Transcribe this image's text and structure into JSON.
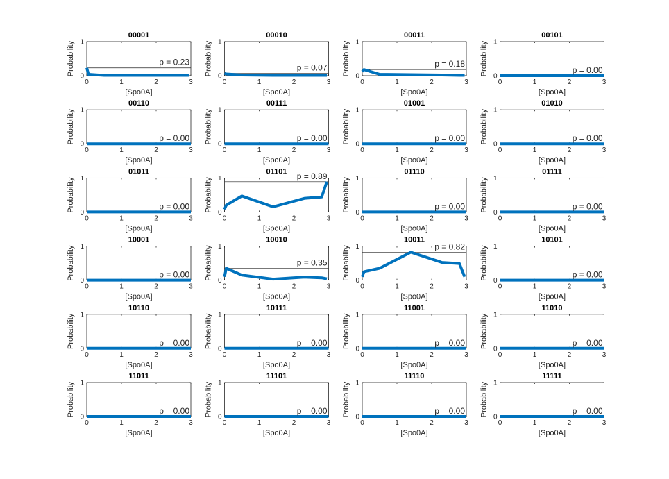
{
  "colors": {
    "series": "#0072bd",
    "axis": "#262626",
    "reference_line": "#262626",
    "background": "#ffffff"
  },
  "chart_data": [
    {
      "type": "line",
      "title": "00001",
      "xlabel": "[Spo0A]",
      "ylabel": "Probability",
      "xlim": [
        0,
        3
      ],
      "ylim": [
        0,
        1
      ],
      "xticks": [
        "0",
        "1",
        "2",
        "3"
      ],
      "yticks": [
        "0",
        "1"
      ],
      "x": [
        0,
        0.05,
        0.5,
        1.4,
        2.3,
        2.8,
        2.95
      ],
      "y": [
        0.23,
        0.04,
        0.01,
        0.01,
        0.01,
        0.01,
        0.01
      ],
      "reference_line": 0.23,
      "annotation": "p = 0.23"
    },
    {
      "type": "line",
      "title": "00010",
      "xlabel": "[Spo0A]",
      "ylabel": "Probability",
      "xlim": [
        0,
        3
      ],
      "ylim": [
        0,
        1
      ],
      "xticks": [
        "0",
        "1",
        "2",
        "3"
      ],
      "yticks": [
        "0",
        "1"
      ],
      "x": [
        0,
        0.05,
        0.5,
        1.4,
        2.3,
        2.8,
        2.95
      ],
      "y": [
        0.07,
        0.05,
        0.02,
        0.01,
        0.01,
        0.01,
        0.01
      ],
      "reference_line": 0.07,
      "annotation": "p = 0.07"
    },
    {
      "type": "line",
      "title": "00011",
      "xlabel": "[Spo0A]",
      "ylabel": "Probability",
      "xlim": [
        0,
        3
      ],
      "ylim": [
        0,
        1
      ],
      "xticks": [
        "0",
        "1",
        "2",
        "3"
      ],
      "yticks": [
        "0",
        "1"
      ],
      "x": [
        0,
        0.05,
        0.5,
        1.4,
        2.3,
        2.8,
        2.95
      ],
      "y": [
        0.12,
        0.18,
        0.04,
        0.03,
        0.02,
        0.01,
        0.01
      ],
      "reference_line": 0.18,
      "annotation": "p = 0.18"
    },
    {
      "type": "line",
      "title": "00101",
      "xlabel": "[Spo0A]",
      "ylabel": "Probability",
      "xlim": [
        0,
        3
      ],
      "ylim": [
        0,
        1
      ],
      "xticks": [
        "0",
        "1",
        "2",
        "3"
      ],
      "yticks": [
        "0",
        "1"
      ],
      "x": [
        0,
        3
      ],
      "y": [
        0,
        0
      ],
      "reference_line": 0,
      "annotation": "p = 0.00"
    },
    {
      "type": "line",
      "title": "00110",
      "xlabel": "[Spo0A]",
      "ylabel": "Probability",
      "xlim": [
        0,
        3
      ],
      "ylim": [
        0,
        1
      ],
      "xticks": [
        "0",
        "1",
        "2",
        "3"
      ],
      "yticks": [
        "0",
        "1"
      ],
      "x": [
        0,
        3
      ],
      "y": [
        0,
        0
      ],
      "reference_line": 0,
      "annotation": "p = 0.00"
    },
    {
      "type": "line",
      "title": "00111",
      "xlabel": "[Spo0A]",
      "ylabel": "Probability",
      "xlim": [
        0,
        3
      ],
      "ylim": [
        0,
        1
      ],
      "xticks": [
        "0",
        "1",
        "2",
        "3"
      ],
      "yticks": [
        "0",
        "1"
      ],
      "x": [
        0,
        3
      ],
      "y": [
        0,
        0
      ],
      "reference_line": 0,
      "annotation": "p = 0.00"
    },
    {
      "type": "line",
      "title": "01001",
      "xlabel": "[Spo0A]",
      "ylabel": "Probability",
      "xlim": [
        0,
        3
      ],
      "ylim": [
        0,
        1
      ],
      "xticks": [
        "0",
        "1",
        "2",
        "3"
      ],
      "yticks": [
        "0",
        "1"
      ],
      "x": [
        0,
        3
      ],
      "y": [
        0,
        0
      ],
      "reference_line": 0,
      "annotation": "p = 0.00"
    },
    {
      "type": "line",
      "title": "01010",
      "xlabel": "[Spo0A]",
      "ylabel": "Probability",
      "xlim": [
        0,
        3
      ],
      "ylim": [
        0,
        1
      ],
      "xticks": [
        "0",
        "1",
        "2",
        "3"
      ],
      "yticks": [
        "0",
        "1"
      ],
      "x": [
        0,
        3
      ],
      "y": [
        0,
        0
      ],
      "reference_line": 0,
      "annotation": "p = 0.00"
    },
    {
      "type": "line",
      "title": "01011",
      "xlabel": "[Spo0A]",
      "ylabel": "Probability",
      "xlim": [
        0,
        3
      ],
      "ylim": [
        0,
        1
      ],
      "xticks": [
        "0",
        "1",
        "2",
        "3"
      ],
      "yticks": [
        "0",
        "1"
      ],
      "x": [
        0,
        3
      ],
      "y": [
        0,
        0
      ],
      "reference_line": 0,
      "annotation": "p = 0.00"
    },
    {
      "type": "line",
      "title": "01101",
      "xlabel": "[Spo0A]",
      "ylabel": "Probability",
      "xlim": [
        0,
        3
      ],
      "ylim": [
        0,
        1
      ],
      "xticks": [
        "0",
        "1",
        "2",
        "3"
      ],
      "yticks": [
        "0",
        "1"
      ],
      "x": [
        0,
        0.05,
        0.5,
        1.4,
        2.3,
        2.8,
        2.95
      ],
      "y": [
        0.08,
        0.2,
        0.47,
        0.15,
        0.4,
        0.44,
        0.89
      ],
      "reference_line": 0.89,
      "annotation": "p = 0.89"
    },
    {
      "type": "line",
      "title": "01110",
      "xlabel": "[Spo0A]",
      "ylabel": "Probability",
      "xlim": [
        0,
        3
      ],
      "ylim": [
        0,
        1
      ],
      "xticks": [
        "0",
        "1",
        "2",
        "3"
      ],
      "yticks": [
        "0",
        "1"
      ],
      "x": [
        0,
        3
      ],
      "y": [
        0,
        0
      ],
      "reference_line": 0,
      "annotation": "p = 0.00"
    },
    {
      "type": "line",
      "title": "01111",
      "xlabel": "[Spo0A]",
      "ylabel": "Probability",
      "xlim": [
        0,
        3
      ],
      "ylim": [
        0,
        1
      ],
      "xticks": [
        "0",
        "1",
        "2",
        "3"
      ],
      "yticks": [
        "0",
        "1"
      ],
      "x": [
        0,
        3
      ],
      "y": [
        0,
        0
      ],
      "reference_line": 0,
      "annotation": "p = 0.00"
    },
    {
      "type": "line",
      "title": "10001",
      "xlabel": "[Spo0A]",
      "ylabel": "Probability",
      "xlim": [
        0,
        3
      ],
      "ylim": [
        0,
        1
      ],
      "xticks": [
        "0",
        "1",
        "2",
        "3"
      ],
      "yticks": [
        "0",
        "1"
      ],
      "x": [
        0,
        3
      ],
      "y": [
        0,
        0
      ],
      "reference_line": 0,
      "annotation": "p = 0.00"
    },
    {
      "type": "line",
      "title": "10010",
      "xlabel": "[Spo0A]",
      "ylabel": "Probability",
      "xlim": [
        0,
        3
      ],
      "ylim": [
        0,
        1
      ],
      "xticks": [
        "0",
        "1",
        "2",
        "3"
      ],
      "yticks": [
        "0",
        "1"
      ],
      "x": [
        0,
        0.05,
        0.5,
        1.4,
        2.3,
        2.8,
        2.95
      ],
      "y": [
        0.1,
        0.35,
        0.15,
        0.03,
        0.09,
        0.07,
        0.04
      ],
      "reference_line": 0.35,
      "annotation": "p = 0.35"
    },
    {
      "type": "line",
      "title": "10011",
      "xlabel": "[Spo0A]",
      "ylabel": "Probability",
      "xlim": [
        0,
        3
      ],
      "ylim": [
        0,
        1
      ],
      "xticks": [
        "0",
        "1",
        "2",
        "3"
      ],
      "yticks": [
        "0",
        "1"
      ],
      "x": [
        0,
        0.05,
        0.5,
        1.4,
        2.3,
        2.8,
        2.95
      ],
      "y": [
        0.1,
        0.25,
        0.35,
        0.82,
        0.52,
        0.49,
        0.1
      ],
      "reference_line": 0.82,
      "annotation": "p = 0.82"
    },
    {
      "type": "line",
      "title": "10101",
      "xlabel": "[Spo0A]",
      "ylabel": "Probability",
      "xlim": [
        0,
        3
      ],
      "ylim": [
        0,
        1
      ],
      "xticks": [
        "0",
        "1",
        "2",
        "3"
      ],
      "yticks": [
        "0",
        "1"
      ],
      "x": [
        0,
        3
      ],
      "y": [
        0,
        0
      ],
      "reference_line": 0,
      "annotation": "p = 0.00"
    },
    {
      "type": "line",
      "title": "10110",
      "xlabel": "[Spo0A]",
      "ylabel": "Probability",
      "xlim": [
        0,
        3
      ],
      "ylim": [
        0,
        1
      ],
      "xticks": [
        "0",
        "1",
        "2",
        "3"
      ],
      "yticks": [
        "0",
        "1"
      ],
      "x": [
        0,
        3
      ],
      "y": [
        0,
        0
      ],
      "reference_line": 0,
      "annotation": "p = 0.00"
    },
    {
      "type": "line",
      "title": "10111",
      "xlabel": "[Spo0A]",
      "ylabel": "Probability",
      "xlim": [
        0,
        3
      ],
      "ylim": [
        0,
        1
      ],
      "xticks": [
        "0",
        "1",
        "2",
        "3"
      ],
      "yticks": [
        "0",
        "1"
      ],
      "x": [
        0,
        3
      ],
      "y": [
        0,
        0
      ],
      "reference_line": 0,
      "annotation": "p = 0.00"
    },
    {
      "type": "line",
      "title": "11001",
      "xlabel": "[Spo0A]",
      "ylabel": "Probability",
      "xlim": [
        0,
        3
      ],
      "ylim": [
        0,
        1
      ],
      "xticks": [
        "0",
        "1",
        "2",
        "3"
      ],
      "yticks": [
        "0",
        "1"
      ],
      "x": [
        0,
        3
      ],
      "y": [
        0,
        0
      ],
      "reference_line": 0,
      "annotation": "p = 0.00"
    },
    {
      "type": "line",
      "title": "11010",
      "xlabel": "[Spo0A]",
      "ylabel": "Probability",
      "xlim": [
        0,
        3
      ],
      "ylim": [
        0,
        1
      ],
      "xticks": [
        "0",
        "1",
        "2",
        "3"
      ],
      "yticks": [
        "0",
        "1"
      ],
      "x": [
        0,
        3
      ],
      "y": [
        0,
        0
      ],
      "reference_line": 0,
      "annotation": "p = 0.00"
    },
    {
      "type": "line",
      "title": "11011",
      "xlabel": "[Spo0A]",
      "ylabel": "Probability",
      "xlim": [
        0,
        3
      ],
      "ylim": [
        0,
        1
      ],
      "xticks": [
        "0",
        "1",
        "2",
        "3"
      ],
      "yticks": [
        "0",
        "1"
      ],
      "x": [
        0,
        3
      ],
      "y": [
        0,
        0
      ],
      "reference_line": 0,
      "annotation": "p = 0.00"
    },
    {
      "type": "line",
      "title": "11101",
      "xlabel": "[Spo0A]",
      "ylabel": "Probability",
      "xlim": [
        0,
        3
      ],
      "ylim": [
        0,
        1
      ],
      "xticks": [
        "0",
        "1",
        "2",
        "3"
      ],
      "yticks": [
        "0",
        "1"
      ],
      "x": [
        0,
        3
      ],
      "y": [
        0,
        0
      ],
      "reference_line": 0,
      "annotation": "p = 0.00"
    },
    {
      "type": "line",
      "title": "11110",
      "xlabel": "[Spo0A]",
      "ylabel": "Probability",
      "xlim": [
        0,
        3
      ],
      "ylim": [
        0,
        1
      ],
      "xticks": [
        "0",
        "1",
        "2",
        "3"
      ],
      "yticks": [
        "0",
        "1"
      ],
      "x": [
        0,
        3
      ],
      "y": [
        0,
        0
      ],
      "reference_line": 0,
      "annotation": "p = 0.00"
    },
    {
      "type": "line",
      "title": "11111",
      "xlabel": "[Spo0A]",
      "ylabel": "Probability",
      "xlim": [
        0,
        3
      ],
      "ylim": [
        0,
        1
      ],
      "xticks": [
        "0",
        "1",
        "2",
        "3"
      ],
      "yticks": [
        "0",
        "1"
      ],
      "x": [
        0,
        3
      ],
      "y": [
        0,
        0
      ],
      "reference_line": 0,
      "annotation": "p = 0.00"
    }
  ]
}
